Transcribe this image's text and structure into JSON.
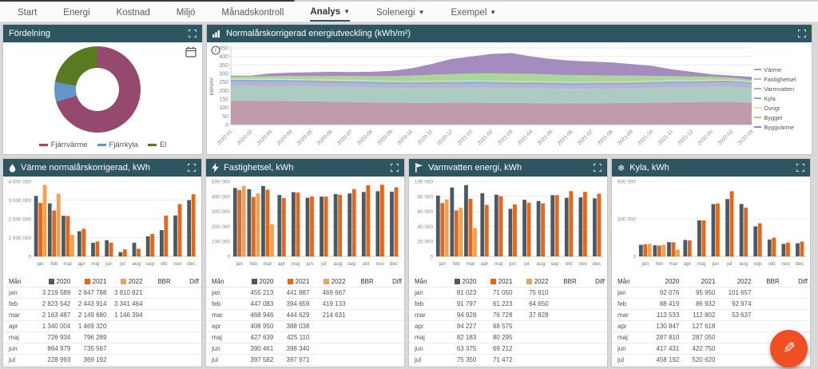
{
  "nav": {
    "items": [
      {
        "label": "Start",
        "caret": false,
        "active": false
      },
      {
        "label": "Energi",
        "caret": false,
        "active": false
      },
      {
        "label": "Kostnad",
        "caret": false,
        "active": false
      },
      {
        "label": "Miljö",
        "caret": false,
        "active": false
      },
      {
        "label": "Månadskontroll",
        "caret": false,
        "active": false
      },
      {
        "label": "Analys",
        "caret": true,
        "active": true
      },
      {
        "label": "Solenergi",
        "caret": true,
        "active": false
      },
      {
        "label": "Exempel",
        "caret": true,
        "active": false
      }
    ]
  },
  "table_labels": {
    "month": "Mån",
    "bbr": "BBR",
    "diff": "Diff"
  },
  "months": [
    "jan",
    "feb",
    "mar",
    "apr",
    "maj",
    "jun",
    "jul",
    "aug",
    "sep",
    "okt",
    "nov",
    "dec"
  ],
  "fab": {
    "icon": "pencil",
    "color": "#f04e23"
  },
  "chart_data": [
    {
      "type": "pie",
      "donut": true,
      "title": "Fördelning",
      "legend_position": "bottom",
      "labels": [
        "Fjärrvärme",
        "Fjärrkyla",
        "El"
      ],
      "values": [
        70.3,
        7.5,
        22.2
      ],
      "colors": [
        "#95496f",
        "#6495c8",
        "#5a7a22"
      ]
    },
    {
      "type": "area",
      "stacked": true,
      "title": "Normalårskorrigerad energiutveckling (kWh/m²)",
      "ylabel": "kWh/m²",
      "ylim": [
        0,
        450
      ],
      "ytick_step": 50,
      "legend_position": "right",
      "x": [
        "2020-01",
        "2020-02",
        "2020-03",
        "2020-04",
        "2020-05",
        "2020-06",
        "2020-07",
        "2020-08",
        "2020-09",
        "2020-10",
        "2020-11",
        "2020-12",
        "2021-01",
        "2021-02",
        "2021-03",
        "2021-04",
        "2021-05",
        "2021-06",
        "2021-07",
        "2021-08",
        "2021-09",
        "2021-10",
        "2021-11",
        "2021-12",
        "2022-01",
        "2022-02",
        "2022-03"
      ],
      "series": [
        {
          "name": "Värme",
          "color": "#bb93a4",
          "values": [
            140,
            140,
            139,
            138,
            137,
            135,
            133,
            131,
            129,
            128,
            128,
            129,
            129,
            128,
            127,
            126,
            125,
            124,
            125,
            126,
            127,
            129,
            131,
            132,
            134,
            135,
            128
          ]
        },
        {
          "name": "Fastighetsel",
          "color": "#a5c8bc",
          "values": [
            88,
            88,
            88,
            88,
            88,
            87,
            87,
            86,
            86,
            86,
            87,
            87,
            88,
            88,
            88,
            87,
            86,
            85,
            85,
            85,
            86,
            86,
            87,
            87,
            88,
            88,
            86
          ]
        },
        {
          "name": "Varmvatten",
          "color": "#b2abd1",
          "values": [
            22,
            22,
            22,
            22,
            21,
            21,
            21,
            21,
            21,
            22,
            22,
            22,
            22,
            22,
            21,
            21,
            20,
            20,
            21,
            21,
            21,
            22,
            22,
            22,
            22,
            22,
            21
          ]
        },
        {
          "name": "Kyla",
          "color": "#87abd4",
          "values": [
            14,
            14,
            14,
            14,
            14,
            15,
            15,
            15,
            15,
            14,
            14,
            14,
            14,
            14,
            14,
            15,
            16,
            16,
            15,
            15,
            14,
            14,
            14,
            14,
            14,
            13,
            13
          ]
        },
        {
          "name": "Övrigt",
          "color": "#e4e795",
          "values": [
            5,
            5,
            5,
            5,
            5,
            5,
            5,
            5,
            5,
            5,
            5,
            5,
            5,
            5,
            5,
            5,
            5,
            5,
            5,
            5,
            5,
            5,
            5,
            5,
            5,
            4,
            4
          ]
        },
        {
          "name": "Byggel",
          "color": "#a5d193",
          "values": [
            12,
            14,
            16,
            18,
            20,
            22,
            24,
            26,
            28,
            32,
            36,
            40,
            42,
            44,
            45,
            44,
            42,
            40,
            38,
            36,
            34,
            30,
            26,
            22,
            18,
            14,
            10
          ]
        },
        {
          "name": "Byggvärme",
          "color": "#9c82ba",
          "values": [
            6,
            5,
            16,
            20,
            22,
            25,
            23,
            26,
            31,
            43,
            63,
            88,
            100,
            114,
            120,
            102,
            91,
            85,
            81,
            77,
            68,
            59,
            40,
            28,
            14,
            12,
            18
          ]
        }
      ]
    },
    {
      "type": "bar",
      "title": "Värme normalårskorrigerad, kWh",
      "icon": "flame",
      "ylim": [
        0,
        4000000
      ],
      "ytick_step": 1000000,
      "axis_margin": 38,
      "legend_squares": true,
      "visible_rows": 8,
      "categories": [
        "jan",
        "feb",
        "mar",
        "apr",
        "maj",
        "jun",
        "jul",
        "aug",
        "sep",
        "okt",
        "nov",
        "dec"
      ],
      "series": [
        {
          "name": "2020",
          "color": "#4a5a64",
          "values": [
            3219589,
            2823542,
            2163487,
            1340004,
            726934,
            864979,
            228993,
            728779,
            1070000,
            1400000,
            2180000,
            3000000
          ]
        },
        {
          "name": "2021",
          "color": "#e8661a",
          "values": [
            2847788,
            2443914,
            2149680,
            1469320,
            796289,
            735567,
            369192,
            406793,
            1200000,
            2170000,
            2790000,
            3310000
          ]
        },
        {
          "name": "2022",
          "color": "#f3a14f",
          "values": [
            3810821,
            3341464,
            1146394
          ]
        }
      ],
      "table_note": "rows sep-dec not visible; sep-dec chart values estimated from bars"
    },
    {
      "type": "bar",
      "title": "Fastighetsel, kWh",
      "icon": "bolt",
      "ylim": [
        0,
        500000
      ],
      "ytick_step": 100000,
      "axis_margin": 33,
      "legend_squares": true,
      "visible_rows": 8,
      "categories": [
        "jan",
        "feb",
        "mar",
        "apr",
        "maj",
        "jun",
        "jul",
        "aug",
        "sep",
        "okt",
        "nov",
        "dec"
      ],
      "series": [
        {
          "name": "2020",
          "color": "#4a5a64",
          "values": [
            455213,
            447083,
            468946,
            408950,
            427639,
            390461,
            397582,
            415013,
            419000,
            429000,
            434000,
            431000
          ]
        },
        {
          "name": "2021",
          "color": "#e8661a",
          "values": [
            441887,
            394659,
            444629,
            388038,
            425110,
            398340,
            397971,
            409663,
            448000,
            474000,
            477000,
            460000
          ]
        },
        {
          "name": "2022",
          "color": "#f3a14f",
          "values": [
            469667,
            419133,
            214631
          ]
        }
      ]
    },
    {
      "type": "bar",
      "title": "Varmvatten energi, kWh",
      "icon": "tap",
      "ylim": [
        0,
        100000
      ],
      "ytick_step": 20000,
      "axis_margin": 33,
      "legend_squares": true,
      "visible_rows": 8,
      "categories": [
        "jan",
        "feb",
        "mar",
        "apr",
        "maj",
        "jun",
        "jul",
        "aug",
        "sep",
        "okt",
        "nov",
        "dec"
      ],
      "series": [
        {
          "name": "2020",
          "color": "#4a5a64",
          "values": [
            81023,
            91797,
            94928,
            84227,
            82183,
            63375,
            75350,
            73829,
            81500,
            78000,
            78600,
            77300
          ]
        },
        {
          "name": "2021",
          "color": "#e8661a",
          "values": [
            71050,
            61223,
            76728,
            68575,
            80295,
            69212,
            71472,
            70674,
            81700,
            87000,
            86000,
            83500
          ]
        },
        {
          "name": "2022",
          "color": "#f3a14f",
          "values": [
            75910,
            64650,
            37828
          ]
        }
      ]
    },
    {
      "type": "bar",
      "title": "Kyla, kWh",
      "icon": "snowflake",
      "ylim": [
        0,
        600000
      ],
      "ytick_step": 300000,
      "axis_margin": 33,
      "legend_squares": false,
      "visible_rows": 8,
      "categories": [
        "jan",
        "feb",
        "mar",
        "apr",
        "maj",
        "jun",
        "jul",
        "aug",
        "sep",
        "okt",
        "nov",
        "dec"
      ],
      "series": [
        {
          "name": "2020",
          "color": "#4a5a64",
          "values": [
            92076,
            88419,
            113533,
            130847,
            287810,
            417431,
            458192,
            418962,
            240000,
            135000,
            100000,
            105000
          ]
        },
        {
          "name": "2021",
          "color": "#e8661a",
          "values": [
            95950,
            86932,
            112802,
            127618,
            287050,
            422750,
            520620,
            388604,
            265000,
            150000,
            110000,
            118000
          ]
        },
        {
          "name": "2022",
          "color": "#f3a14f",
          "values": [
            101657,
            92974,
            53637
          ]
        }
      ]
    }
  ]
}
